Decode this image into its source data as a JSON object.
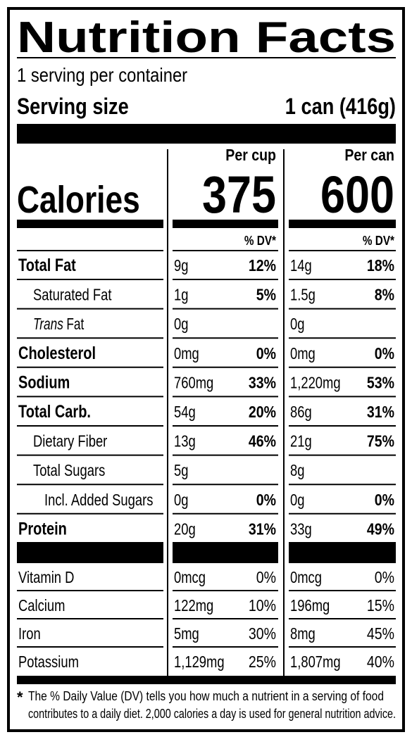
{
  "title": "Nutrition Facts",
  "servings": "1 serving per container",
  "serving_size": {
    "label": "Serving size",
    "value": "1 can (416g)"
  },
  "calories_label": "Calories",
  "columns": [
    {
      "header": "Per cup",
      "calories": "375",
      "dv_header": "% DV*"
    },
    {
      "header": "Per can",
      "calories": "600",
      "dv_header": "% DV*"
    }
  ],
  "nutrients": [
    {
      "name": "Total Fat",
      "amounts": [
        "9g",
        "14g"
      ],
      "dv": [
        "12%",
        "18%"
      ],
      "subrows": [
        {
          "name": "Saturated Fat",
          "amounts": [
            "1g",
            "1.5g"
          ],
          "dv": [
            "5%",
            "8%"
          ]
        },
        {
          "name_italic": "Trans",
          "name": "Fat",
          "amounts": [
            "0g",
            "0g"
          ]
        }
      ]
    },
    {
      "name": "Cholesterol",
      "amounts": [
        "0mg",
        "0mg"
      ],
      "dv": [
        "0%",
        "0%"
      ]
    },
    {
      "name": "Sodium",
      "amounts": [
        "760mg",
        "1,220mg"
      ],
      "dv": [
        "33%",
        "53%"
      ]
    },
    {
      "name": "Total Carb.",
      "amounts": [
        "54g",
        "86g"
      ],
      "dv": [
        "20%",
        "31%"
      ],
      "subrows": [
        {
          "name": "Dietary Fiber",
          "amounts": [
            "13g",
            "21g"
          ],
          "dv": [
            "46%",
            "75%"
          ]
        },
        {
          "name": "Total Sugars",
          "amounts": [
            "5g",
            "8g"
          ],
          "subrows": [
            {
              "name": "Incl. Added Sugars",
              "amounts": [
                "0g",
                "0g"
              ],
              "dv": [
                "0%",
                "0%"
              ]
            }
          ]
        }
      ]
    },
    {
      "name": "Protein",
      "amounts": [
        "20g",
        "33g"
      ],
      "dv": [
        "31%",
        "49%"
      ]
    }
  ],
  "vitamins": [
    {
      "name": "Vitamin D",
      "amounts": [
        "0mcg",
        "0mcg"
      ],
      "dv": [
        "0%",
        "0%"
      ]
    },
    {
      "name": "Calcium",
      "amounts": [
        "122mg",
        "196mg"
      ],
      "dv": [
        "10%",
        "15%"
      ]
    },
    {
      "name": "Iron",
      "amounts": [
        "5mg",
        "8mg"
      ],
      "dv": [
        "30%",
        "45%"
      ]
    },
    {
      "name": "Potassium",
      "amounts": [
        "1,129mg",
        "1,807mg"
      ],
      "dv": [
        "25%",
        "40%"
      ]
    }
  ],
  "footnote": {
    "marker": "*",
    "lines": [
      "The % Daily Value (DV) tells you how much a nutrient in a serving of food",
      "contributes to a daily diet. 2,000 calories a day is used for general nutrition advice."
    ]
  }
}
